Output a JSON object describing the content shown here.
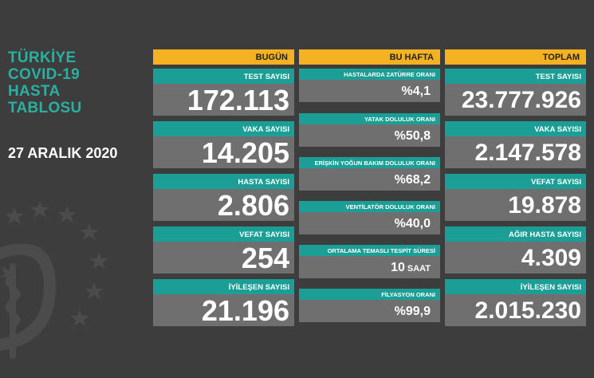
{
  "sidebar": {
    "title_lines": [
      "TÜRKİYE",
      "COVID-19",
      "HASTA",
      "TABLOSU"
    ],
    "date": "27 ARALIK 2020"
  },
  "today": {
    "header": "BUGÜN",
    "cards": [
      {
        "label": "TEST SAYISI",
        "value": "172.113"
      },
      {
        "label": "VAKA SAYISI",
        "value": "14.205"
      },
      {
        "label": "HASTA SAYISI",
        "value": "2.806"
      },
      {
        "label": "VEFAT SAYISI",
        "value": "254"
      },
      {
        "label": "İYİLEŞEN SAYISI",
        "value": "21.196"
      }
    ]
  },
  "week": {
    "header": "BU HAFTA",
    "cards": [
      {
        "label": "HASTALARDA ZATÜRRE ORANI",
        "value": "%4,1",
        "unit": ""
      },
      {
        "label": "YATAK DOLULUK ORANI",
        "value": "%50,8",
        "unit": ""
      },
      {
        "label": "ERİŞKİN YOĞUN BAKIM DOLULUK ORANI",
        "value": "%68,2",
        "unit": ""
      },
      {
        "label": "VENTİLATÖR DOLULUK ORANI",
        "value": "%40,0",
        "unit": ""
      },
      {
        "label": "ORTALAMA TEMASLI TESPİT SÜRESİ",
        "value": "10",
        "unit": "SAAT"
      },
      {
        "label": "FİLYASYON ORANI",
        "value": "%99,9",
        "unit": ""
      }
    ]
  },
  "total": {
    "header": "TOPLAM",
    "cards": [
      {
        "label": "TEST SAYISI",
        "value": "23.777.926"
      },
      {
        "label": "VAKA SAYISI",
        "value": "2.147.578"
      },
      {
        "label": "VEFAT SAYISI",
        "value": "19.878"
      },
      {
        "label": "AĞIR HASTA SAYISI",
        "value": "4.309"
      },
      {
        "label": "İYİLEŞEN SAYISI",
        "value": "2.015.230"
      }
    ]
  },
  "colors": {
    "background": "#3d3d3d",
    "header": "#f4b223",
    "label": "#1a9e96",
    "value_bg": "#6f6f6f",
    "title": "#2ab0a0"
  },
  "icons": [
    "ministry-emblem-icon"
  ]
}
